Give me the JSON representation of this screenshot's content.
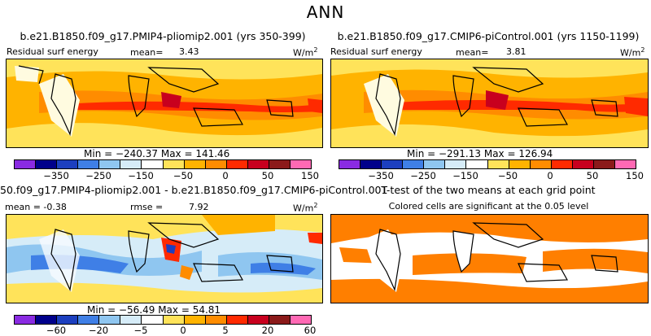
{
  "figure": {
    "title": "ANN"
  },
  "panels": {
    "top_left": {
      "title": "b.e21.B1850.f09_g17.PMIP4-pliomip2.001 (yrs 350-399)",
      "variable": "Residual surf energy",
      "mean_label": "mean=",
      "mean_value": "3.43",
      "units": "W/m",
      "units_exp": "2",
      "minmax": "Min = −240.37  Max = 141.46"
    },
    "top_right": {
      "title": "b.e21.B1850.f09_g17.CMIP6-piControl.001 (yrs 1150-1199)",
      "variable": "Residual surf energy",
      "mean_label": "mean=",
      "mean_value": "3.81",
      "units": "W/m",
      "units_exp": "2",
      "minmax": "Min = −291.13  Max = 126.94"
    },
    "bottom_left": {
      "title": "50.f09_g17.PMIP4-pliomip2.001 - b.e21.B1850.f09_g17.CMIP6-piControl.001",
      "mean_text": "mean = -0.38",
      "rmse_label": "rmse =",
      "rmse_value": "7.92",
      "units": "W/m",
      "units_exp": "2",
      "minmax": "Min = −56.49  Max = 54.81"
    },
    "bottom_right": {
      "title": "T-test of the two means at each grid point",
      "subtitle": "Colored cells are significant at the 0.05 level"
    }
  },
  "colorbars": {
    "colors": [
      "#8a2be2",
      "#00008b",
      "#1c3fbf",
      "#3f7fe6",
      "#8fc6f0",
      "#d6ecf8",
      "#ffffff",
      "#ffe35a",
      "#ffb300",
      "#ff8c00",
      "#ff2a00",
      "#c8001e",
      "#8b1a1a",
      "#ff69b4"
    ],
    "abs_ticks": [
      "−350",
      "−250",
      "−150",
      "−50",
      "0",
      "50",
      "150"
    ],
    "diff_ticks": [
      "−60",
      "−20",
      "−5",
      "0",
      "5",
      "20",
      "60"
    ]
  },
  "colors": {
    "ttest_fill": "#ff7f00",
    "ocean_warm": "#ffb300",
    "ocean_light": "#ffe35a"
  }
}
